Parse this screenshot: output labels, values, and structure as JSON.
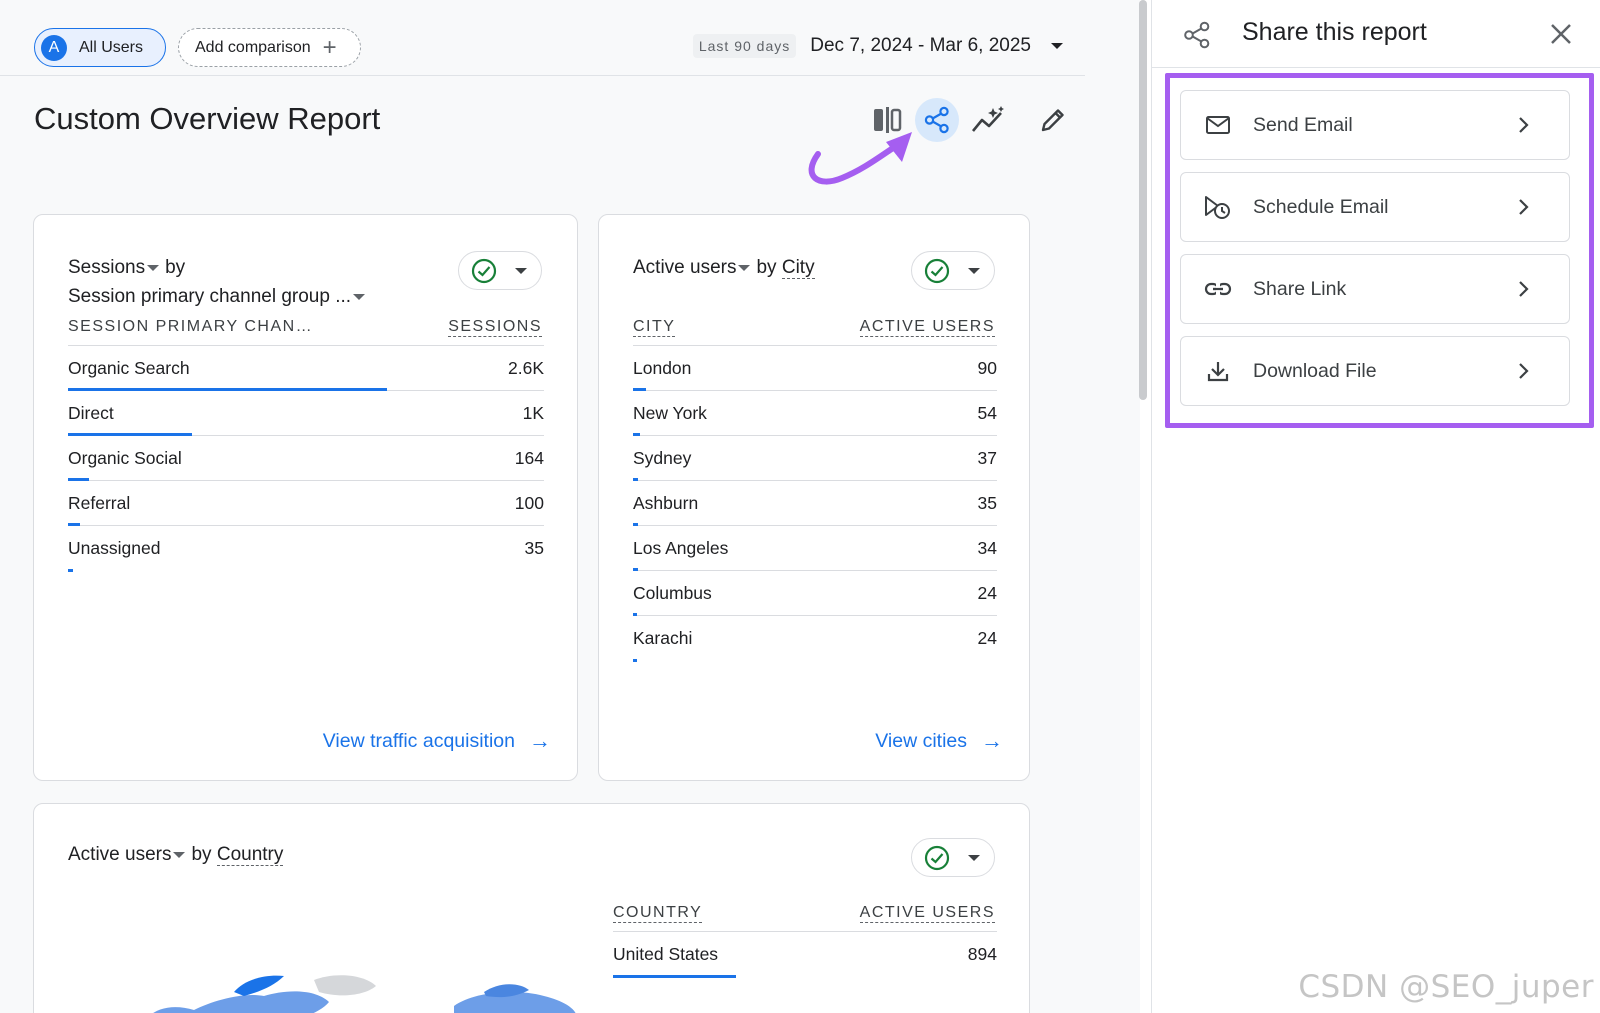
{
  "topbar": {
    "segment_avatar": "A",
    "segment_label": "All Users",
    "add_comparison_label": "Add comparison",
    "date_label": "Last 90 days",
    "date_value": "Dec 7, 2024 - Mar 6, 2025"
  },
  "page_title": "Custom Overview Report",
  "cards": {
    "sessions": {
      "metric": "Sessions",
      "by": "by",
      "dimension": "Session primary channel group ...",
      "col_left": "SESSION PRIMARY CHAN…",
      "col_right": "SESSIONS",
      "rows": [
        {
          "label": "Organic Search",
          "value": "2.6K",
          "fraction": 0.67
        },
        {
          "label": "Direct",
          "value": "1K",
          "fraction": 0.26
        },
        {
          "label": "Organic Social",
          "value": "164",
          "fraction": 0.045
        },
        {
          "label": "Referral",
          "value": "100",
          "fraction": 0.025
        },
        {
          "label": "Unassigned",
          "value": "35",
          "fraction": 0.01
        }
      ],
      "link_label": "View traffic acquisition"
    },
    "city": {
      "metric": "Active users",
      "by": "by",
      "dimension": "City",
      "col_left": "CITY",
      "col_right": "ACTIVE USERS",
      "rows": [
        {
          "label": "London",
          "value": "90",
          "fraction": 0.035
        },
        {
          "label": "New York",
          "value": "54",
          "fraction": 0.02
        },
        {
          "label": "Sydney",
          "value": "37",
          "fraction": 0.015
        },
        {
          "label": "Ashburn",
          "value": "35",
          "fraction": 0.014
        },
        {
          "label": "Los Angeles",
          "value": "34",
          "fraction": 0.014
        },
        {
          "label": "Columbus",
          "value": "24",
          "fraction": 0.01
        },
        {
          "label": "Karachi",
          "value": "24",
          "fraction": 0.01
        }
      ],
      "link_label": "View cities"
    },
    "country": {
      "metric": "Active users",
      "by": "by",
      "dimension": "Country",
      "col_left": "COUNTRY",
      "col_right": "ACTIVE USERS",
      "rows": [
        {
          "label": "United States",
          "value": "894",
          "fraction": 0.32
        }
      ]
    }
  },
  "panel": {
    "title": "Share this report",
    "options": [
      {
        "label": "Send Email",
        "icon": "mail-icon"
      },
      {
        "label": "Schedule Email",
        "icon": "schedule-email-icon"
      },
      {
        "label": "Share Link",
        "icon": "link-icon"
      },
      {
        "label": "Download File",
        "icon": "download-icon"
      }
    ]
  },
  "colors": {
    "accent": "#1a73e8",
    "highlight": "#a55ef0",
    "check": "#188038"
  },
  "watermark": "CSDN @SEO_juper"
}
